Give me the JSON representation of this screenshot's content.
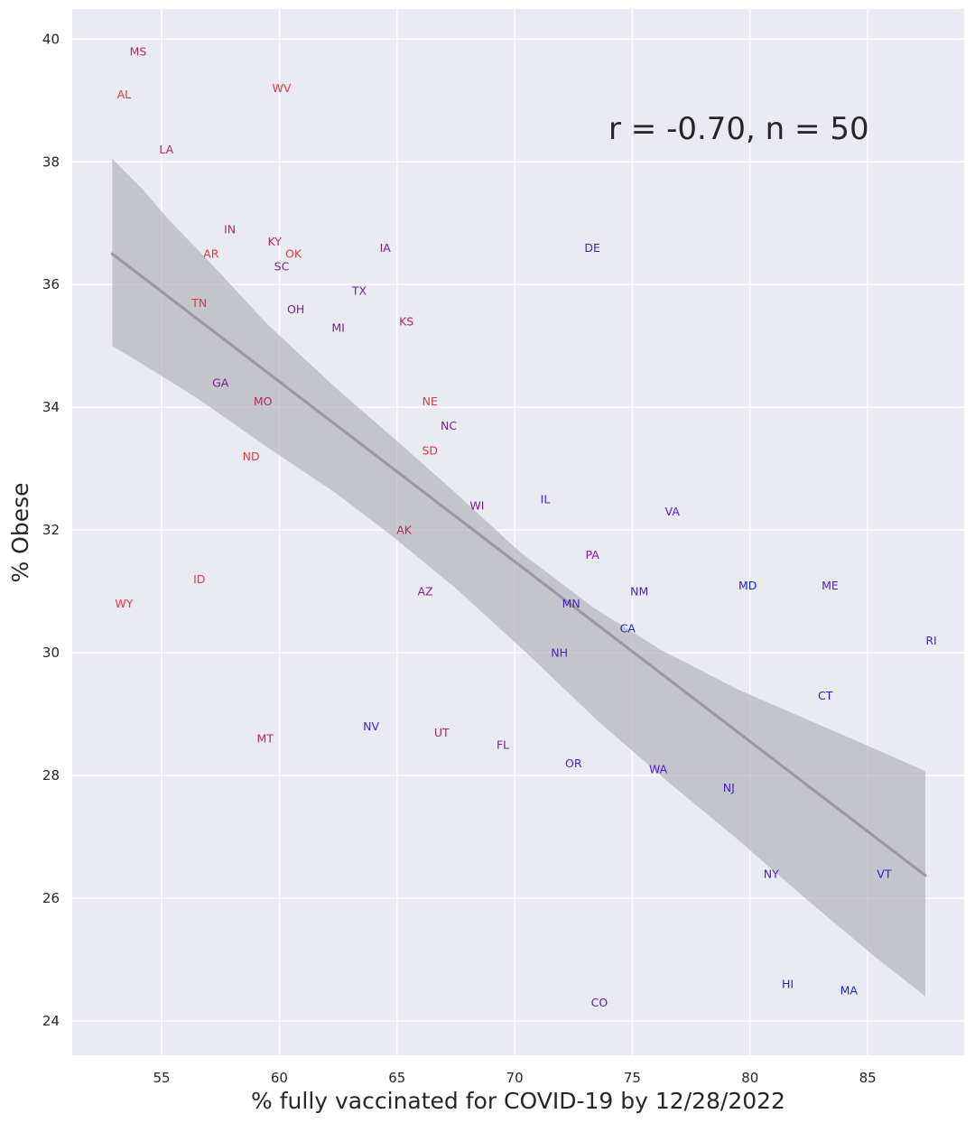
{
  "chart_data": {
    "type": "scatter",
    "title": "",
    "xlabel": "% fully vaccinated for COVID-19 by 12/28/2022",
    "ylabel": "% Obese",
    "xlim": [
      51.2,
      89.1
    ],
    "ylim": [
      23.44,
      40.49
    ],
    "xticks": [
      55,
      60,
      65,
      70,
      75,
      80,
      85
    ],
    "yticks": [
      24,
      26,
      28,
      30,
      32,
      34,
      36,
      38,
      40
    ],
    "grid": true,
    "legend": "none",
    "annotation": "r = -0.70, n = 50",
    "colors": {
      "background": "#eaeaf2",
      "grid": "#ffffff",
      "band": "#b4b3ba",
      "line": "#9a999f",
      "red": "#e03a3a",
      "crimson": "#b3285a",
      "purple": "#7b1f8f",
      "indigo": "#4b1ccc",
      "blue": "#1f1fd9"
    },
    "regression": {
      "x": [
        52.9,
        87.45
      ],
      "y": [
        36.5,
        26.37
      ],
      "ci_upper": [
        [
          52.9,
          38.05
        ],
        [
          54.2,
          37.55
        ],
        [
          55.2,
          37.1
        ],
        [
          57.2,
          36.3
        ],
        [
          59.5,
          35.35
        ],
        [
          62.3,
          34.35
        ],
        [
          65.3,
          33.35
        ],
        [
          67.5,
          32.6
        ],
        [
          70.2,
          31.65
        ],
        [
          73.3,
          30.75
        ],
        [
          76.2,
          30.05
        ],
        [
          79.5,
          29.4
        ],
        [
          82.8,
          28.85
        ],
        [
          85.5,
          28.4
        ],
        [
          87.45,
          28.07
        ]
      ],
      "ci_lower": [
        [
          52.9,
          35.0
        ],
        [
          54.2,
          34.7
        ],
        [
          56.5,
          34.15
        ],
        [
          59.3,
          33.4
        ],
        [
          62.4,
          32.6
        ],
        [
          64.8,
          31.9
        ],
        [
          67.5,
          31.05
        ],
        [
          70.5,
          30.0
        ],
        [
          73.5,
          28.9
        ],
        [
          76.5,
          27.9
        ],
        [
          79.5,
          26.95
        ],
        [
          82.5,
          25.95
        ],
        [
          85.3,
          25.05
        ],
        [
          87.45,
          24.4
        ]
      ]
    },
    "points": [
      {
        "label": "MS",
        "x": 54.0,
        "y": 39.8,
        "color": "crimson"
      },
      {
        "label": "AL",
        "x": 53.4,
        "y": 39.1,
        "color": "red"
      },
      {
        "label": "WV",
        "x": 60.1,
        "y": 39.2,
        "color": "red"
      },
      {
        "label": "LA",
        "x": 55.2,
        "y": 38.2,
        "color": "crimson"
      },
      {
        "label": "IN",
        "x": 57.9,
        "y": 36.9,
        "color": "crimson"
      },
      {
        "label": "KY",
        "x": 59.8,
        "y": 36.7,
        "color": "crimson"
      },
      {
        "label": "AR",
        "x": 57.1,
        "y": 36.5,
        "color": "red"
      },
      {
        "label": "OK",
        "x": 60.6,
        "y": 36.5,
        "color": "red"
      },
      {
        "label": "SC",
        "x": 60.1,
        "y": 36.3,
        "color": "purple"
      },
      {
        "label": "IA",
        "x": 64.5,
        "y": 36.6,
        "color": "purple"
      },
      {
        "label": "DE",
        "x": 73.3,
        "y": 36.6,
        "color": "indigo"
      },
      {
        "label": "TX",
        "x": 63.4,
        "y": 35.9,
        "color": "purple"
      },
      {
        "label": "TN",
        "x": 56.6,
        "y": 35.7,
        "color": "red"
      },
      {
        "label": "OH",
        "x": 60.7,
        "y": 35.6,
        "color": "purple"
      },
      {
        "label": "MI",
        "x": 62.5,
        "y": 35.3,
        "color": "purple"
      },
      {
        "label": "KS",
        "x": 65.4,
        "y": 35.4,
        "color": "crimson"
      },
      {
        "label": "GA",
        "x": 57.5,
        "y": 34.4,
        "color": "purple"
      },
      {
        "label": "MO",
        "x": 59.3,
        "y": 34.1,
        "color": "crimson"
      },
      {
        "label": "NE",
        "x": 66.4,
        "y": 34.1,
        "color": "red"
      },
      {
        "label": "NC",
        "x": 67.2,
        "y": 33.7,
        "color": "purple"
      },
      {
        "label": "SD",
        "x": 66.4,
        "y": 33.3,
        "color": "red"
      },
      {
        "label": "ND",
        "x": 58.8,
        "y": 33.2,
        "color": "red"
      },
      {
        "label": "IL",
        "x": 71.3,
        "y": 32.5,
        "color": "indigo"
      },
      {
        "label": "WI",
        "x": 68.4,
        "y": 32.4,
        "color": "purple"
      },
      {
        "label": "VA",
        "x": 76.7,
        "y": 32.3,
        "color": "indigo"
      },
      {
        "label": "AK",
        "x": 65.3,
        "y": 32.0,
        "color": "crimson"
      },
      {
        "label": "PA",
        "x": 73.3,
        "y": 31.6,
        "color": "purple"
      },
      {
        "label": "ID",
        "x": 56.6,
        "y": 31.2,
        "color": "red"
      },
      {
        "label": "MD",
        "x": 79.9,
        "y": 31.1,
        "color": "blue"
      },
      {
        "label": "ME",
        "x": 83.4,
        "y": 31.1,
        "color": "indigo"
      },
      {
        "label": "AZ",
        "x": 66.2,
        "y": 31.0,
        "color": "purple"
      },
      {
        "label": "NM",
        "x": 75.3,
        "y": 31.0,
        "color": "indigo"
      },
      {
        "label": "WY",
        "x": 53.4,
        "y": 30.8,
        "color": "red"
      },
      {
        "label": "MN",
        "x": 72.4,
        "y": 30.8,
        "color": "indigo"
      },
      {
        "label": "CA",
        "x": 74.8,
        "y": 30.4,
        "color": "blue"
      },
      {
        "label": "RI",
        "x": 87.7,
        "y": 30.2,
        "color": "indigo"
      },
      {
        "label": "NH",
        "x": 71.9,
        "y": 30.0,
        "color": "indigo"
      },
      {
        "label": "CT",
        "x": 83.2,
        "y": 29.3,
        "color": "blue"
      },
      {
        "label": "NV",
        "x": 63.9,
        "y": 28.8,
        "color": "indigo"
      },
      {
        "label": "UT",
        "x": 66.9,
        "y": 28.7,
        "color": "crimson"
      },
      {
        "label": "MT",
        "x": 59.4,
        "y": 28.6,
        "color": "crimson"
      },
      {
        "label": "FL",
        "x": 69.5,
        "y": 28.5,
        "color": "purple"
      },
      {
        "label": "OR",
        "x": 72.5,
        "y": 28.2,
        "color": "indigo"
      },
      {
        "label": "WA",
        "x": 76.1,
        "y": 28.1,
        "color": "indigo"
      },
      {
        "label": "NJ",
        "x": 79.1,
        "y": 27.8,
        "color": "indigo"
      },
      {
        "label": "NY",
        "x": 80.9,
        "y": 26.4,
        "color": "indigo"
      },
      {
        "label": "VT",
        "x": 85.7,
        "y": 26.4,
        "color": "blue"
      },
      {
        "label": "HI",
        "x": 81.6,
        "y": 24.6,
        "color": "blue"
      },
      {
        "label": "MA",
        "x": 84.2,
        "y": 24.5,
        "color": "blue"
      },
      {
        "label": "CO",
        "x": 73.6,
        "y": 24.3,
        "color": "indigo"
      }
    ]
  }
}
